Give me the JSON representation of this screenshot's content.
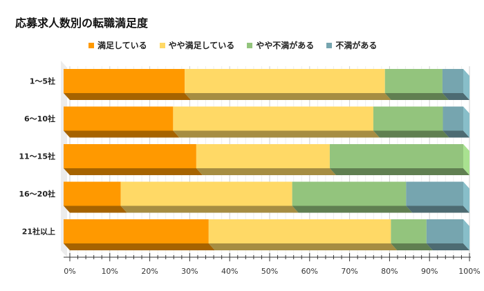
{
  "chart_data": {
    "type": "bar",
    "orientation": "horizontal-stacked-100",
    "title": "応募求人数別の転職満足度",
    "categories": [
      "1〜5社",
      "6〜10社",
      "11〜15社",
      "16〜20社",
      "21社以上"
    ],
    "series": [
      {
        "name": "満足している",
        "color": "#ff9900",
        "values": [
          30.3,
          27.4,
          33.2,
          14.3,
          36.3
        ]
      },
      {
        "name": "やや満足している",
        "color": "#ffd966",
        "values": [
          50.1,
          50.1,
          33.4,
          42.9,
          45.6
        ]
      },
      {
        "name": "やや不満がある",
        "color": "#93c47d",
        "values": [
          14.4,
          17.4,
          33.4,
          28.5,
          8.9
        ]
      },
      {
        "name": "不満がある",
        "color": "#76a5af",
        "values": [
          5.2,
          5.1,
          0,
          14.3,
          9.2
        ]
      }
    ],
    "xlim": [
      0,
      100
    ],
    "xticks": [
      "0%",
      "10%",
      "20%",
      "30%",
      "40%",
      "50%",
      "60%",
      "70%",
      "80%",
      "90%",
      "100%"
    ],
    "legend_position": "top",
    "grid": true
  }
}
